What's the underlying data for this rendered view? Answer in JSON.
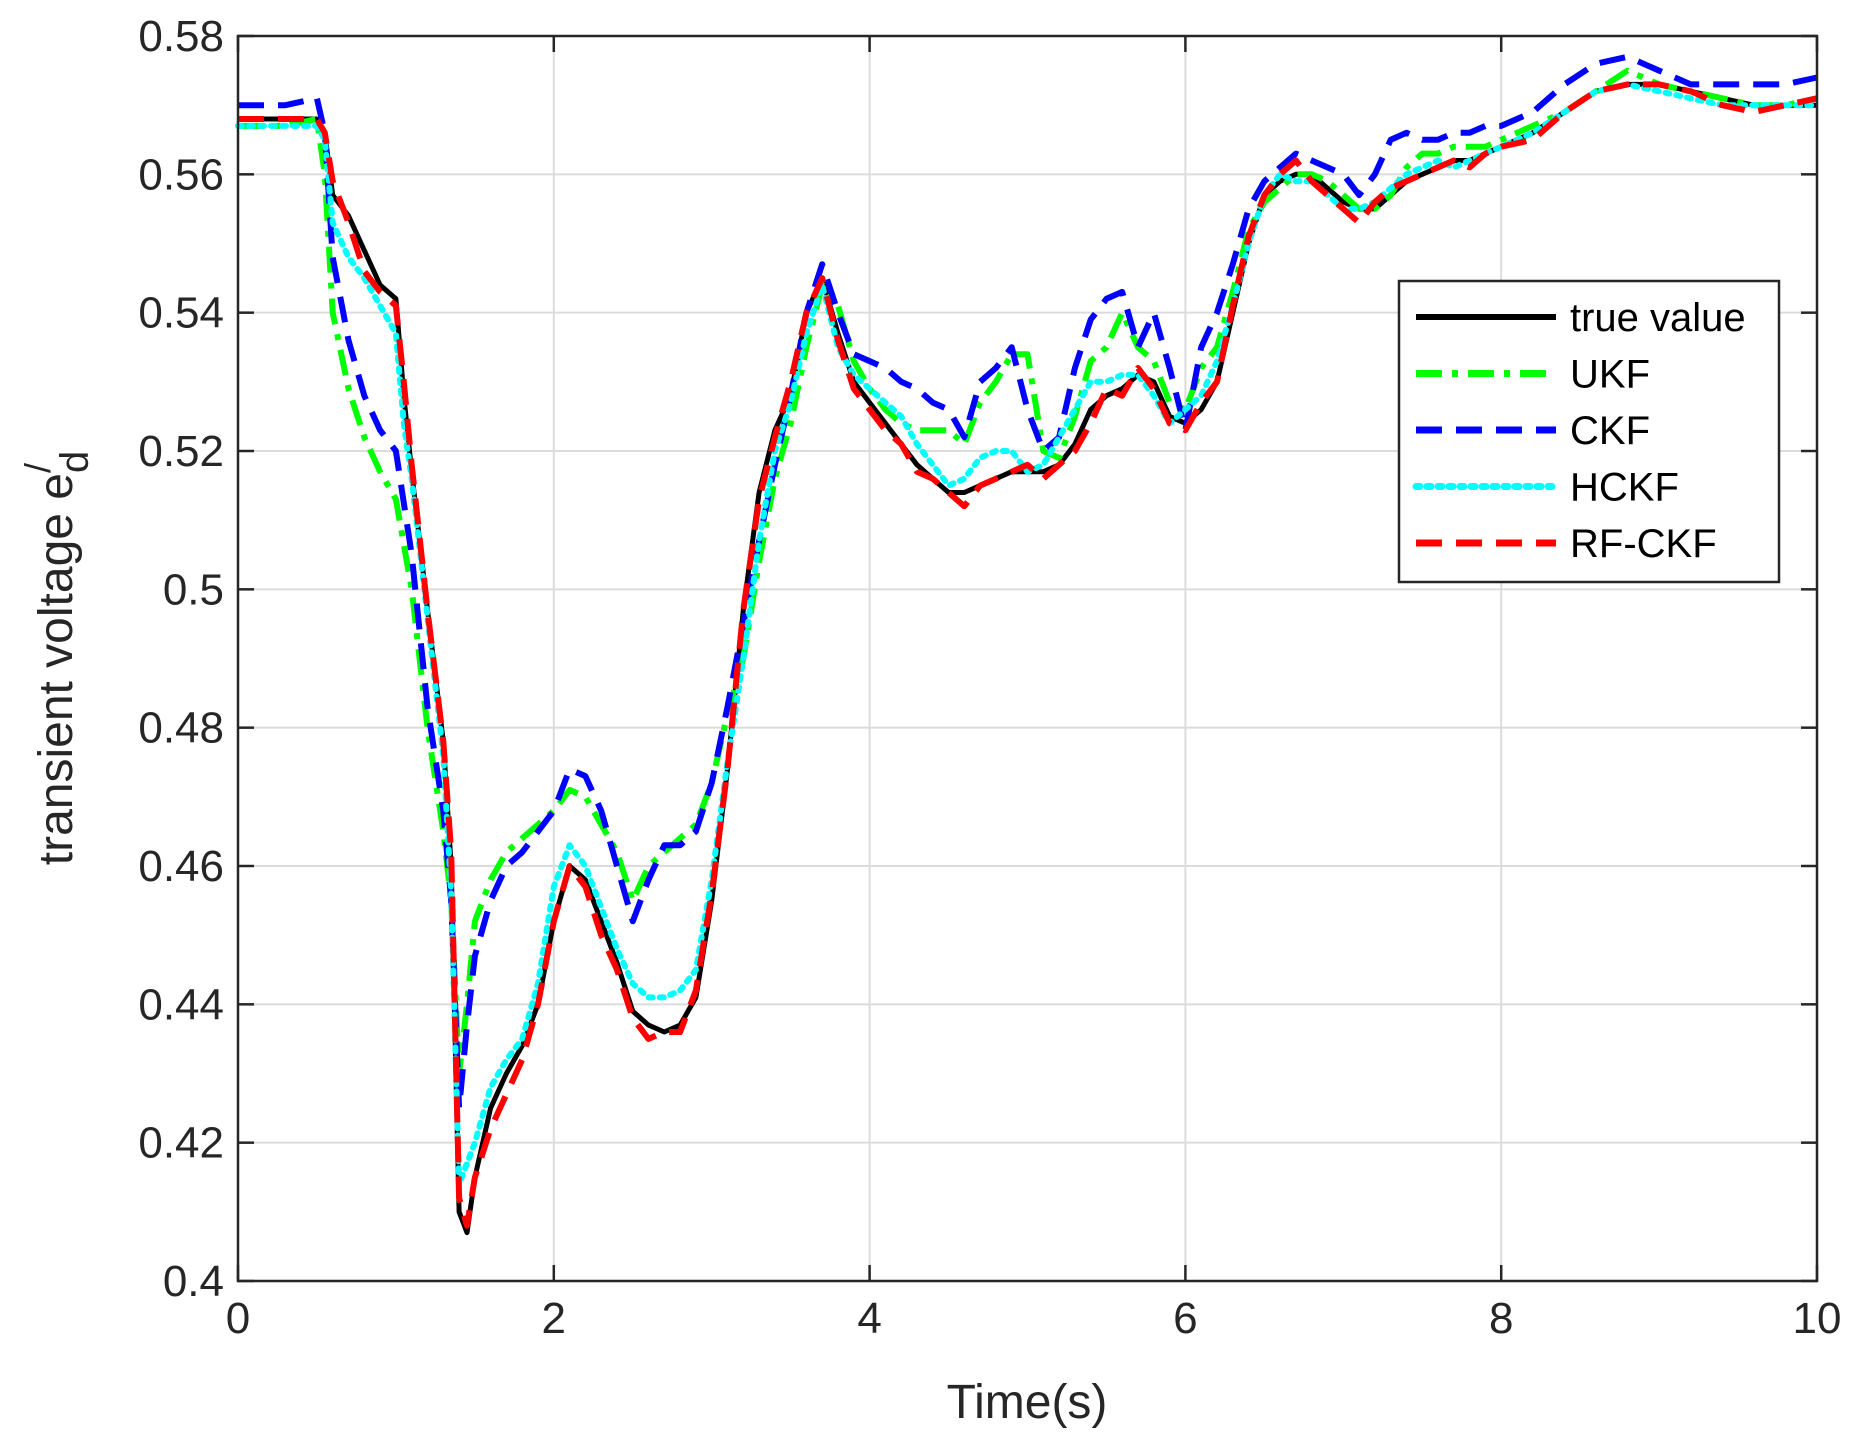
{
  "chart_data": {
    "type": "line",
    "xlabel": "Time(s)",
    "ylabel": "transient voltage e",
    "ylabel_superscript": "/",
    "ylabel_subscript": "d",
    "xlim": [
      0,
      10
    ],
    "ylim": [
      0.4,
      0.58
    ],
    "x_ticks": [
      "0",
      "2",
      "4",
      "6",
      "8",
      "10"
    ],
    "y_ticks": [
      "0.4",
      "0.42",
      "0.44",
      "0.46",
      "0.48",
      "0.5",
      "0.52",
      "0.54",
      "0.56",
      "0.58"
    ],
    "grid": true,
    "legend_position": "upper-right",
    "series": [
      {
        "name": "true value",
        "color": "#000000",
        "style": "solid",
        "x": [
          0,
          0.3,
          0.5,
          0.55,
          0.6,
          0.7,
          0.8,
          0.9,
          1.0,
          1.05,
          1.1,
          1.2,
          1.3,
          1.35,
          1.4,
          1.45,
          1.5,
          1.6,
          1.7,
          1.8,
          1.9,
          2.0,
          2.1,
          2.2,
          2.3,
          2.4,
          2.5,
          2.6,
          2.7,
          2.8,
          2.9,
          3.0,
          3.1,
          3.2,
          3.3,
          3.4,
          3.5,
          3.6,
          3.7,
          3.8,
          3.9,
          4.0,
          4.1,
          4.2,
          4.3,
          4.4,
          4.5,
          4.6,
          4.7,
          4.8,
          4.9,
          5.0,
          5.1,
          5.2,
          5.3,
          5.4,
          5.5,
          5.6,
          5.7,
          5.8,
          5.9,
          6.0,
          6.1,
          6.2,
          6.3,
          6.4,
          6.5,
          6.6,
          6.7,
          6.8,
          6.9,
          7.0,
          7.1,
          7.2,
          7.3,
          7.4,
          7.5,
          7.6,
          7.7,
          7.8,
          7.9,
          8.0,
          8.2,
          8.4,
          8.6,
          8.8,
          9.0,
          9.2,
          9.4,
          9.6,
          9.8,
          10.0
        ],
        "y": [
          0.568,
          0.568,
          0.568,
          0.566,
          0.557,
          0.554,
          0.549,
          0.544,
          0.542,
          0.528,
          0.517,
          0.497,
          0.478,
          0.46,
          0.41,
          0.407,
          0.415,
          0.425,
          0.43,
          0.434,
          0.44,
          0.452,
          0.46,
          0.458,
          0.452,
          0.446,
          0.439,
          0.437,
          0.436,
          0.437,
          0.441,
          0.455,
          0.474,
          0.497,
          0.514,
          0.523,
          0.528,
          0.54,
          0.545,
          0.537,
          0.53,
          0.527,
          0.524,
          0.521,
          0.518,
          0.516,
          0.514,
          0.514,
          0.515,
          0.516,
          0.517,
          0.517,
          0.517,
          0.518,
          0.521,
          0.526,
          0.528,
          0.529,
          0.531,
          0.53,
          0.525,
          0.524,
          0.526,
          0.53,
          0.54,
          0.55,
          0.557,
          0.559,
          0.56,
          0.56,
          0.558,
          0.556,
          0.555,
          0.555,
          0.557,
          0.559,
          0.56,
          0.561,
          0.562,
          0.562,
          0.563,
          0.564,
          0.566,
          0.569,
          0.572,
          0.573,
          0.573,
          0.572,
          0.571,
          0.57,
          0.57,
          0.57
        ]
      },
      {
        "name": "UKF",
        "color": "#00ff00",
        "style": "dashdot",
        "x": [
          0,
          0.3,
          0.5,
          0.55,
          0.6,
          0.7,
          0.8,
          0.9,
          1.0,
          1.1,
          1.2,
          1.3,
          1.35,
          1.4,
          1.45,
          1.5,
          1.6,
          1.7,
          1.8,
          1.9,
          2.0,
          2.1,
          2.2,
          2.3,
          2.4,
          2.5,
          2.6,
          2.7,
          2.8,
          2.9,
          3.0,
          3.1,
          3.2,
          3.3,
          3.4,
          3.5,
          3.6,
          3.7,
          3.8,
          3.9,
          4.0,
          4.1,
          4.2,
          4.3,
          4.4,
          4.5,
          4.6,
          4.7,
          4.8,
          4.9,
          5.0,
          5.1,
          5.2,
          5.3,
          5.4,
          5.5,
          5.6,
          5.7,
          5.8,
          5.9,
          6.0,
          6.1,
          6.2,
          6.3,
          6.4,
          6.5,
          6.6,
          6.7,
          6.8,
          6.9,
          7.0,
          7.1,
          7.2,
          7.3,
          7.4,
          7.5,
          7.6,
          7.7,
          7.8,
          7.9,
          8.0,
          8.2,
          8.4,
          8.6,
          8.8,
          9.0,
          9.2,
          9.4,
          9.6,
          9.8,
          10.0
        ],
        "y": [
          0.567,
          0.567,
          0.568,
          0.56,
          0.54,
          0.529,
          0.522,
          0.517,
          0.513,
          0.5,
          0.48,
          0.465,
          0.455,
          0.43,
          0.44,
          0.452,
          0.458,
          0.462,
          0.464,
          0.466,
          0.468,
          0.471,
          0.47,
          0.466,
          0.462,
          0.455,
          0.46,
          0.462,
          0.464,
          0.466,
          0.472,
          0.482,
          0.49,
          0.504,
          0.516,
          0.524,
          0.535,
          0.544,
          0.541,
          0.533,
          0.529,
          0.526,
          0.524,
          0.523,
          0.523,
          0.523,
          0.521,
          0.527,
          0.53,
          0.534,
          0.534,
          0.52,
          0.519,
          0.525,
          0.533,
          0.535,
          0.54,
          0.535,
          0.533,
          0.527,
          0.526,
          0.532,
          0.535,
          0.543,
          0.552,
          0.556,
          0.558,
          0.56,
          0.56,
          0.559,
          0.557,
          0.555,
          0.555,
          0.557,
          0.561,
          0.563,
          0.563,
          0.564,
          0.564,
          0.564,
          0.565,
          0.567,
          0.569,
          0.572,
          0.575,
          0.573,
          0.572,
          0.571,
          0.57,
          0.57,
          0.571
        ]
      },
      {
        "name": "CKF",
        "color": "#0000ff",
        "style": "dashed",
        "x": [
          0,
          0.3,
          0.5,
          0.55,
          0.6,
          0.7,
          0.8,
          0.9,
          1.0,
          1.1,
          1.2,
          1.3,
          1.35,
          1.4,
          1.45,
          1.5,
          1.6,
          1.7,
          1.8,
          1.9,
          2.0,
          2.1,
          2.2,
          2.3,
          2.4,
          2.5,
          2.6,
          2.7,
          2.8,
          2.9,
          3.0,
          3.1,
          3.2,
          3.3,
          3.4,
          3.5,
          3.6,
          3.7,
          3.8,
          3.9,
          4.0,
          4.1,
          4.2,
          4.3,
          4.4,
          4.5,
          4.6,
          4.7,
          4.8,
          4.9,
          5.0,
          5.1,
          5.2,
          5.3,
          5.4,
          5.5,
          5.6,
          5.7,
          5.8,
          5.9,
          6.0,
          6.1,
          6.2,
          6.3,
          6.4,
          6.5,
          6.6,
          6.7,
          6.8,
          6.9,
          7.0,
          7.1,
          7.2,
          7.3,
          7.4,
          7.5,
          7.6,
          7.7,
          7.8,
          7.9,
          8.0,
          8.2,
          8.4,
          8.6,
          8.8,
          9.0,
          9.2,
          9.4,
          9.6,
          9.8,
          10.0
        ],
        "y": [
          0.57,
          0.57,
          0.571,
          0.566,
          0.548,
          0.536,
          0.528,
          0.523,
          0.52,
          0.505,
          0.483,
          0.468,
          0.455,
          0.425,
          0.437,
          0.447,
          0.455,
          0.46,
          0.462,
          0.465,
          0.468,
          0.474,
          0.473,
          0.468,
          0.46,
          0.452,
          0.458,
          0.463,
          0.463,
          0.465,
          0.472,
          0.483,
          0.495,
          0.507,
          0.518,
          0.528,
          0.54,
          0.547,
          0.54,
          0.534,
          0.533,
          0.532,
          0.53,
          0.529,
          0.527,
          0.526,
          0.522,
          0.53,
          0.532,
          0.535,
          0.526,
          0.52,
          0.522,
          0.532,
          0.539,
          0.542,
          0.543,
          0.535,
          0.54,
          0.532,
          0.523,
          0.535,
          0.54,
          0.547,
          0.555,
          0.559,
          0.561,
          0.563,
          0.562,
          0.561,
          0.56,
          0.557,
          0.56,
          0.565,
          0.566,
          0.565,
          0.565,
          0.566,
          0.566,
          0.567,
          0.567,
          0.569,
          0.573,
          0.576,
          0.577,
          0.575,
          0.573,
          0.573,
          0.573,
          0.573,
          0.574
        ]
      },
      {
        "name": "HCKF",
        "color": "#00ffff",
        "style": "dotted",
        "x": [
          0,
          0.3,
          0.5,
          0.55,
          0.6,
          0.7,
          0.8,
          0.9,
          1.0,
          1.05,
          1.1,
          1.2,
          1.3,
          1.35,
          1.4,
          1.45,
          1.5,
          1.6,
          1.7,
          1.8,
          1.9,
          2.0,
          2.1,
          2.2,
          2.3,
          2.4,
          2.5,
          2.6,
          2.7,
          2.8,
          2.9,
          3.0,
          3.1,
          3.2,
          3.3,
          3.4,
          3.5,
          3.6,
          3.7,
          3.8,
          3.9,
          4.0,
          4.1,
          4.2,
          4.3,
          4.4,
          4.5,
          4.6,
          4.7,
          4.8,
          4.9,
          5.0,
          5.1,
          5.2,
          5.3,
          5.4,
          5.5,
          5.6,
          5.7,
          5.8,
          5.9,
          6.0,
          6.1,
          6.2,
          6.3,
          6.4,
          6.5,
          6.6,
          6.7,
          6.8,
          6.9,
          7.0,
          7.1,
          7.2,
          7.3,
          7.4,
          7.5,
          7.6,
          7.7,
          7.8,
          7.9,
          8.0,
          8.2,
          8.4,
          8.6,
          8.8,
          9.0,
          9.2,
          9.4,
          9.6,
          9.8,
          10.0
        ],
        "y": [
          0.567,
          0.567,
          0.567,
          0.565,
          0.553,
          0.548,
          0.545,
          0.541,
          0.537,
          0.524,
          0.516,
          0.496,
          0.476,
          0.456,
          0.414,
          0.417,
          0.42,
          0.428,
          0.432,
          0.435,
          0.443,
          0.457,
          0.463,
          0.46,
          0.454,
          0.448,
          0.443,
          0.441,
          0.441,
          0.442,
          0.445,
          0.458,
          0.475,
          0.49,
          0.507,
          0.52,
          0.527,
          0.537,
          0.544,
          0.535,
          0.531,
          0.529,
          0.527,
          0.525,
          0.521,
          0.518,
          0.515,
          0.516,
          0.519,
          0.52,
          0.52,
          0.517,
          0.518,
          0.522,
          0.526,
          0.53,
          0.53,
          0.531,
          0.531,
          0.528,
          0.524,
          0.526,
          0.528,
          0.533,
          0.541,
          0.55,
          0.557,
          0.56,
          0.559,
          0.559,
          0.557,
          0.555,
          0.555,
          0.556,
          0.558,
          0.56,
          0.561,
          0.562,
          0.561,
          0.562,
          0.563,
          0.564,
          0.566,
          0.569,
          0.572,
          0.573,
          0.572,
          0.571,
          0.57,
          0.57,
          0.57,
          0.57
        ]
      },
      {
        "name": "RF-CKF",
        "color": "#ff0000",
        "style": "dashed",
        "x": [
          0,
          0.3,
          0.5,
          0.55,
          0.6,
          0.7,
          0.8,
          0.9,
          1.0,
          1.05,
          1.1,
          1.2,
          1.3,
          1.35,
          1.4,
          1.45,
          1.5,
          1.6,
          1.7,
          1.8,
          1.9,
          2.0,
          2.1,
          2.2,
          2.3,
          2.4,
          2.5,
          2.6,
          2.7,
          2.8,
          2.9,
          3.0,
          3.1,
          3.2,
          3.3,
          3.4,
          3.5,
          3.6,
          3.7,
          3.8,
          3.9,
          4.0,
          4.1,
          4.2,
          4.3,
          4.4,
          4.5,
          4.6,
          4.7,
          4.8,
          4.9,
          5.0,
          5.1,
          5.2,
          5.3,
          5.4,
          5.5,
          5.6,
          5.7,
          5.8,
          5.9,
          6.0,
          6.1,
          6.2,
          6.3,
          6.4,
          6.5,
          6.6,
          6.7,
          6.8,
          6.9,
          7.0,
          7.1,
          7.2,
          7.3,
          7.4,
          7.5,
          7.6,
          7.7,
          7.8,
          7.9,
          8.0,
          8.2,
          8.4,
          8.6,
          8.8,
          9.0,
          9.2,
          9.4,
          9.6,
          9.8,
          10.0
        ],
        "y": [
          0.568,
          0.568,
          0.568,
          0.566,
          0.559,
          0.553,
          0.546,
          0.543,
          0.541,
          0.53,
          0.518,
          0.497,
          0.478,
          0.462,
          0.412,
          0.408,
          0.415,
          0.422,
          0.427,
          0.432,
          0.44,
          0.452,
          0.46,
          0.457,
          0.45,
          0.445,
          0.438,
          0.435,
          0.436,
          0.436,
          0.442,
          0.456,
          0.474,
          0.497,
          0.513,
          0.522,
          0.53,
          0.54,
          0.545,
          0.536,
          0.529,
          0.526,
          0.523,
          0.521,
          0.517,
          0.516,
          0.514,
          0.512,
          0.515,
          0.516,
          0.517,
          0.518,
          0.516,
          0.518,
          0.52,
          0.524,
          0.529,
          0.528,
          0.532,
          0.529,
          0.524,
          0.523,
          0.527,
          0.53,
          0.541,
          0.551,
          0.557,
          0.56,
          0.562,
          0.559,
          0.557,
          0.555,
          0.553,
          0.556,
          0.558,
          0.559,
          0.56,
          0.561,
          0.562,
          0.561,
          0.563,
          0.564,
          0.565,
          0.569,
          0.572,
          0.573,
          0.573,
          0.572,
          0.57,
          0.569,
          0.57,
          0.571
        ]
      }
    ]
  }
}
